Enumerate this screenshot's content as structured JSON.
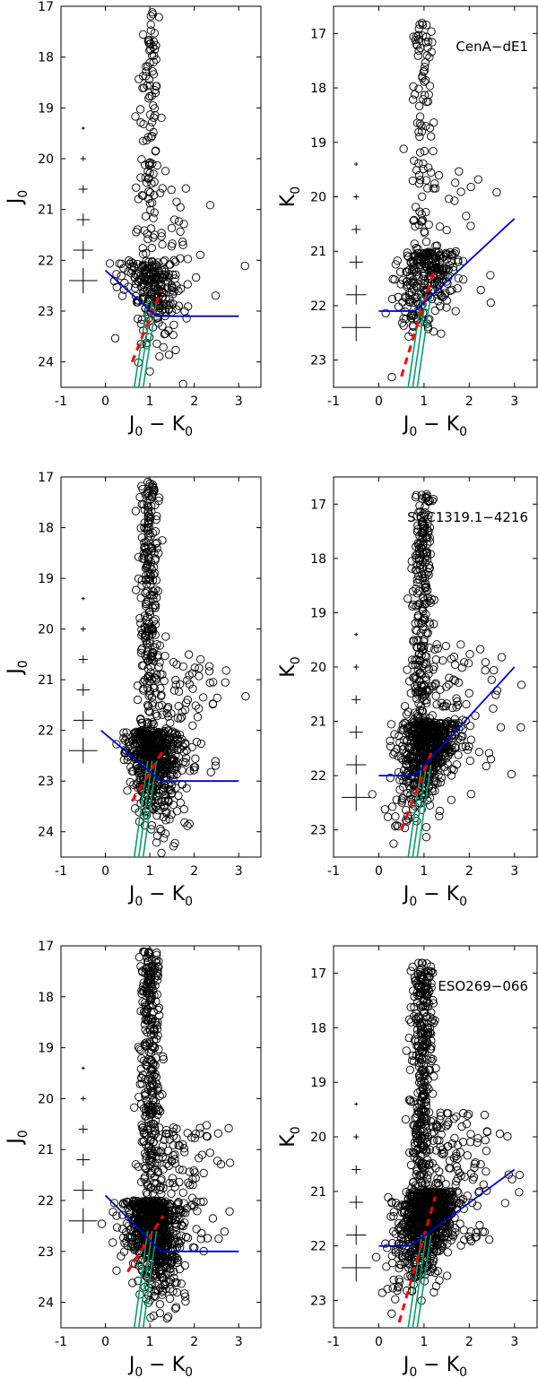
{
  "chart_data": [
    {
      "type": "scatter",
      "panel": "top-left",
      "galaxy": "",
      "xlabel": "J0 − K0",
      "ylabel": "J0",
      "xlim": [
        -1,
        3.5
      ],
      "ylim": [
        17,
        24.5
      ],
      "y_inverted": true,
      "xticks": [
        "-1",
        "0",
        "1",
        "2",
        "3"
      ],
      "yticks": [
        "17",
        "18",
        "19",
        "20",
        "21",
        "22",
        "23",
        "24"
      ],
      "error_bars": [
        {
          "x": -0.5,
          "y": 19.4,
          "xerr": 0.04,
          "yerr": 0.03
        },
        {
          "x": -0.5,
          "y": 20.0,
          "xerr": 0.06,
          "yerr": 0.05
        },
        {
          "x": -0.5,
          "y": 20.6,
          "xerr": 0.1,
          "yerr": 0.08
        },
        {
          "x": -0.5,
          "y": 21.2,
          "xerr": 0.15,
          "yerr": 0.12
        },
        {
          "x": -0.5,
          "y": 21.8,
          "xerr": 0.22,
          "yerr": 0.18
        },
        {
          "x": -0.5,
          "y": 22.4,
          "xerr": 0.32,
          "yerr": 0.25
        }
      ],
      "blue_line": [
        [
          0,
          22.2
        ],
        [
          1.15,
          23.1
        ],
        [
          3.0,
          23.1
        ]
      ],
      "red_dashed_line": [
        [
          0.6,
          24.0
        ],
        [
          1.25,
          22.6
        ]
      ],
      "green_isochrones": [
        [
          [
            0.65,
            24.5
          ],
          [
            0.95,
            22.8
          ]
        ],
        [
          [
            0.75,
            24.5
          ],
          [
            1.05,
            22.8
          ]
        ],
        [
          [
            0.85,
            24.5
          ],
          [
            1.15,
            22.8
          ]
        ]
      ]
    },
    {
      "type": "scatter",
      "panel": "top-right",
      "galaxy": "CenA−dE1",
      "xlabel": "J0 − K0",
      "ylabel": "K0",
      "xlim": [
        -1,
        3.5
      ],
      "ylim": [
        16.5,
        23.5
      ],
      "y_inverted": true,
      "xticks": [
        "-1",
        "0",
        "1",
        "2",
        "3"
      ],
      "yticks": [
        "17",
        "18",
        "19",
        "20",
        "21",
        "22",
        "23"
      ],
      "error_bars": [
        {
          "x": -0.5,
          "y": 19.4,
          "xerr": 0.04,
          "yerr": 0.03
        },
        {
          "x": -0.5,
          "y": 20.0,
          "xerr": 0.06,
          "yerr": 0.05
        },
        {
          "x": -0.5,
          "y": 20.6,
          "xerr": 0.1,
          "yerr": 0.08
        },
        {
          "x": -0.5,
          "y": 21.2,
          "xerr": 0.15,
          "yerr": 0.12
        },
        {
          "x": -0.5,
          "y": 21.8,
          "xerr": 0.22,
          "yerr": 0.18
        },
        {
          "x": -0.5,
          "y": 22.4,
          "xerr": 0.32,
          "yerr": 0.25
        }
      ],
      "blue_line": [
        [
          0,
          22.1
        ],
        [
          0.8,
          22.1
        ],
        [
          3.0,
          20.4
        ]
      ],
      "red_dashed_line": [
        [
          0.5,
          23.3
        ],
        [
          1.2,
          21.4
        ]
      ],
      "green_isochrones": [
        [
          [
            0.65,
            23.5
          ],
          [
            0.95,
            21.8
          ]
        ],
        [
          [
            0.75,
            23.5
          ],
          [
            1.05,
            21.8
          ]
        ],
        [
          [
            0.85,
            23.5
          ],
          [
            1.15,
            21.8
          ]
        ]
      ]
    },
    {
      "type": "scatter",
      "panel": "middle-left",
      "galaxy": "",
      "xlabel": "J0 − K0",
      "ylabel": "J0",
      "xlim": [
        -1,
        3.5
      ],
      "ylim": [
        17,
        24.5
      ],
      "y_inverted": true,
      "xticks": [
        "-1",
        "0",
        "1",
        "2",
        "3"
      ],
      "yticks": [
        "17",
        "18",
        "19",
        "20",
        "21",
        "22",
        "23",
        "24"
      ],
      "error_bars": [
        {
          "x": -0.5,
          "y": 19.4,
          "xerr": 0.04,
          "yerr": 0.03
        },
        {
          "x": -0.5,
          "y": 20.0,
          "xerr": 0.06,
          "yerr": 0.05
        },
        {
          "x": -0.5,
          "y": 20.6,
          "xerr": 0.1,
          "yerr": 0.08
        },
        {
          "x": -0.5,
          "y": 21.2,
          "xerr": 0.15,
          "yerr": 0.12
        },
        {
          "x": -0.5,
          "y": 21.8,
          "xerr": 0.22,
          "yerr": 0.18
        },
        {
          "x": -0.5,
          "y": 22.4,
          "xerr": 0.32,
          "yerr": 0.25
        }
      ],
      "blue_line": [
        [
          -0.1,
          22.0
        ],
        [
          1.25,
          23.0
        ],
        [
          3.0,
          23.0
        ]
      ],
      "red_dashed_line": [
        [
          0.6,
          23.4
        ],
        [
          1.3,
          22.4
        ]
      ],
      "green_isochrones": [
        [
          [
            0.65,
            24.5
          ],
          [
            0.95,
            22.6
          ]
        ],
        [
          [
            0.75,
            24.5
          ],
          [
            1.05,
            22.6
          ]
        ],
        [
          [
            0.85,
            24.5
          ],
          [
            1.15,
            22.6
          ]
        ]
      ]
    },
    {
      "type": "scatter",
      "panel": "middle-right",
      "galaxy": "SGC1319.1−4216",
      "xlabel": "J0 − K0",
      "ylabel": "K0",
      "xlim": [
        -1,
        3.5
      ],
      "ylim": [
        16.5,
        23.5
      ],
      "y_inverted": true,
      "xticks": [
        "-1",
        "0",
        "1",
        "2",
        "3"
      ],
      "yticks": [
        "17",
        "18",
        "19",
        "20",
        "21",
        "22",
        "23"
      ],
      "error_bars": [
        {
          "x": -0.5,
          "y": 19.4,
          "xerr": 0.04,
          "yerr": 0.03
        },
        {
          "x": -0.5,
          "y": 20.0,
          "xerr": 0.06,
          "yerr": 0.05
        },
        {
          "x": -0.5,
          "y": 20.6,
          "xerr": 0.1,
          "yerr": 0.08
        },
        {
          "x": -0.5,
          "y": 21.2,
          "xerr": 0.15,
          "yerr": 0.12
        },
        {
          "x": -0.5,
          "y": 21.8,
          "xerr": 0.22,
          "yerr": 0.18
        },
        {
          "x": -0.5,
          "y": 22.4,
          "xerr": 0.32,
          "yerr": 0.25
        }
      ],
      "blue_line": [
        [
          0,
          22.0
        ],
        [
          0.8,
          22.0
        ],
        [
          3.0,
          20.0
        ]
      ],
      "red_dashed_line": [
        [
          0.5,
          23.0
        ],
        [
          1.2,
          21.5
        ]
      ],
      "green_isochrones": [
        [
          [
            0.65,
            23.5
          ],
          [
            0.95,
            21.8
          ]
        ],
        [
          [
            0.75,
            23.5
          ],
          [
            1.05,
            21.8
          ]
        ],
        [
          [
            0.85,
            23.5
          ],
          [
            1.15,
            21.8
          ]
        ]
      ]
    },
    {
      "type": "scatter",
      "panel": "bottom-left",
      "galaxy": "",
      "xlabel": "J0 − K0",
      "ylabel": "J0",
      "xlim": [
        -1,
        3.5
      ],
      "ylim": [
        17,
        24.5
      ],
      "y_inverted": true,
      "xticks": [
        "-1",
        "0",
        "1",
        "2",
        "3"
      ],
      "yticks": [
        "17",
        "18",
        "19",
        "20",
        "21",
        "22",
        "23",
        "24"
      ],
      "error_bars": [
        {
          "x": -0.5,
          "y": 19.4,
          "xerr": 0.04,
          "yerr": 0.03
        },
        {
          "x": -0.5,
          "y": 20.0,
          "xerr": 0.06,
          "yerr": 0.05
        },
        {
          "x": -0.5,
          "y": 20.6,
          "xerr": 0.1,
          "yerr": 0.08
        },
        {
          "x": -0.5,
          "y": 21.2,
          "xerr": 0.15,
          "yerr": 0.12
        },
        {
          "x": -0.5,
          "y": 21.8,
          "xerr": 0.22,
          "yerr": 0.18
        },
        {
          "x": -0.5,
          "y": 22.4,
          "xerr": 0.32,
          "yerr": 0.25
        }
      ],
      "blue_line": [
        [
          0,
          21.9
        ],
        [
          1.25,
          23.0
        ],
        [
          3.0,
          23.0
        ]
      ],
      "red_dashed_line": [
        [
          0.5,
          23.4
        ],
        [
          1.3,
          22.3
        ]
      ],
      "green_isochrones": [
        [
          [
            0.65,
            24.5
          ],
          [
            0.95,
            22.6
          ]
        ],
        [
          [
            0.75,
            24.5
          ],
          [
            1.05,
            22.6
          ]
        ],
        [
          [
            0.85,
            24.5
          ],
          [
            1.15,
            22.6
          ]
        ]
      ]
    },
    {
      "type": "scatter",
      "panel": "bottom-right",
      "galaxy": "ESO269−066",
      "xlabel": "J0 − K0",
      "ylabel": "K0",
      "xlim": [
        -1,
        3.5
      ],
      "ylim": [
        16.5,
        23.5
      ],
      "y_inverted": true,
      "xticks": [
        "-1",
        "0",
        "1",
        "2",
        "3"
      ],
      "yticks": [
        "17",
        "18",
        "19",
        "20",
        "21",
        "22",
        "23"
      ],
      "error_bars": [
        {
          "x": -0.5,
          "y": 19.4,
          "xerr": 0.04,
          "yerr": 0.03
        },
        {
          "x": -0.5,
          "y": 20.0,
          "xerr": 0.06,
          "yerr": 0.05
        },
        {
          "x": -0.5,
          "y": 20.6,
          "xerr": 0.1,
          "yerr": 0.08
        },
        {
          "x": -0.5,
          "y": 21.2,
          "xerr": 0.15,
          "yerr": 0.12
        },
        {
          "x": -0.5,
          "y": 21.8,
          "xerr": 0.22,
          "yerr": 0.18
        },
        {
          "x": -0.5,
          "y": 22.4,
          "xerr": 0.32,
          "yerr": 0.25
        }
      ],
      "blue_line": [
        [
          0,
          22.0
        ],
        [
          0.7,
          22.0
        ],
        [
          3.0,
          20.6
        ]
      ],
      "red_dashed_line": [
        [
          0.45,
          23.4
        ],
        [
          1.25,
          21.1
        ]
      ],
      "green_isochrones": [
        [
          [
            0.65,
            23.5
          ],
          [
            0.95,
            21.8
          ]
        ],
        [
          [
            0.75,
            23.5
          ],
          [
            1.05,
            21.8
          ]
        ],
        [
          [
            0.85,
            23.5
          ],
          [
            1.15,
            21.8
          ]
        ]
      ]
    }
  ],
  "colors": {
    "points": "#000000",
    "blue_line": "#0000cc",
    "red_dashed": "#ff0000",
    "isochrones": "#00a06e"
  }
}
